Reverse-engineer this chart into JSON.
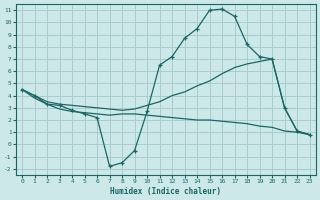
{
  "background_color": "#cce8e8",
  "grid_color": "#aacccc",
  "line_color": "#1a6666",
  "xlabel": "Humidex (Indice chaleur)",
  "xlim": [
    -0.5,
    23.5
  ],
  "ylim": [
    -2.5,
    11.5
  ],
  "xticks": [
    0,
    1,
    2,
    3,
    4,
    5,
    6,
    7,
    8,
    9,
    10,
    11,
    12,
    13,
    14,
    15,
    16,
    17,
    18,
    19,
    20,
    21,
    22,
    23
  ],
  "yticks": [
    -2,
    -1,
    0,
    1,
    2,
    3,
    4,
    5,
    6,
    7,
    8,
    9,
    10,
    11
  ],
  "line1_x": [
    0,
    1,
    2,
    3,
    4,
    5,
    6,
    7,
    8,
    9,
    10,
    11,
    12,
    13,
    14,
    15,
    16,
    17,
    18,
    19,
    20,
    21,
    22,
    23
  ],
  "line1_y": [
    4.5,
    4.0,
    3.3,
    3.2,
    2.8,
    2.5,
    2.2,
    -1.8,
    -1.5,
    -0.5,
    2.7,
    6.5,
    7.2,
    8.7,
    9.5,
    11.0,
    11.1,
    10.5,
    8.2,
    7.2,
    7.0,
    3.0,
    1.1,
    0.8
  ],
  "line2_x": [
    0,
    1,
    2,
    3,
    4,
    5,
    6,
    7,
    8,
    9,
    10,
    11,
    12,
    13,
    14,
    15,
    16,
    17,
    18,
    19,
    20,
    21,
    22,
    23
  ],
  "line2_y": [
    4.5,
    4.0,
    3.5,
    3.3,
    3.2,
    3.1,
    3.0,
    2.9,
    2.8,
    2.9,
    3.2,
    3.5,
    4.0,
    4.3,
    4.8,
    5.2,
    5.8,
    6.3,
    6.6,
    6.8,
    7.0,
    3.0,
    1.1,
    0.8
  ],
  "line3_x": [
    0,
    1,
    2,
    3,
    4,
    5,
    6,
    7,
    8,
    9,
    10,
    11,
    12,
    13,
    14,
    15,
    16,
    17,
    18,
    19,
    20,
    21,
    22,
    23
  ],
  "line3_y": [
    4.5,
    3.8,
    3.3,
    2.9,
    2.7,
    2.6,
    2.5,
    2.4,
    2.5,
    2.5,
    2.4,
    2.3,
    2.2,
    2.1,
    2.0,
    2.0,
    1.9,
    1.8,
    1.7,
    1.5,
    1.4,
    1.1,
    1.0,
    0.8
  ]
}
